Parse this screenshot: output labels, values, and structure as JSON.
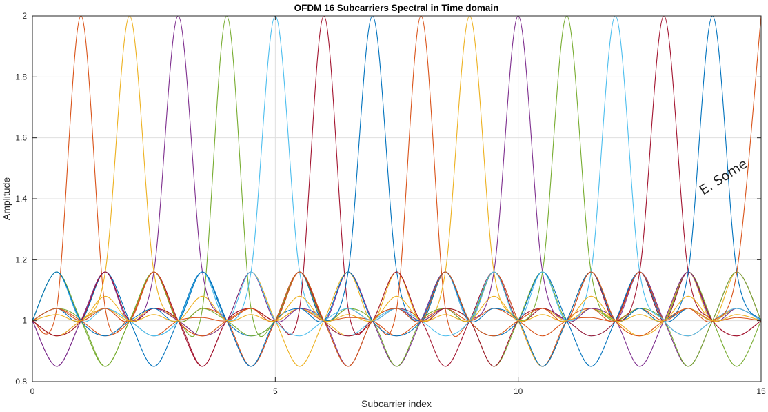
{
  "chart_data": {
    "type": "line",
    "title": "OFDM 16 Subcarriers Spectral in Time domain",
    "xlabel": "Subcarrier index",
    "ylabel": "Amplitude",
    "xlim": [
      0,
      15
    ],
    "ylim": [
      0.8,
      2
    ],
    "xticks": [
      0,
      5,
      10,
      15
    ],
    "yticks": [
      0.8,
      1,
      1.2,
      1.4,
      1.6,
      1.8,
      2
    ],
    "grid": true,
    "legend": "none",
    "annotation": "E. Some",
    "x_step": 0.5,
    "series": [
      {
        "color": "#D95319",
        "values": [
          1,
          1.04,
          2,
          1.04,
          1,
          0.95,
          1,
          1.01,
          1,
          1.04,
          1,
          1.04,
          1,
          1.01,
          1,
          0.95,
          1,
          1.04,
          1,
          1.04,
          1,
          0.95,
          1,
          1.01,
          1,
          1.04,
          1,
          1.04,
          1,
          1.01,
          1
        ]
      },
      {
        "color": "#EDB120",
        "values": [
          1,
          0.95,
          1,
          1.16,
          2,
          1.16,
          1,
          0.95,
          1,
          1.04,
          1,
          1.04,
          1,
          0.95,
          1,
          1.16,
          1,
          1.16,
          1,
          0.95,
          1,
          1.04,
          1,
          1.04,
          1,
          0.95,
          1,
          1.16,
          1,
          1.16,
          1
        ]
      },
      {
        "color": "#7E2F8E",
        "values": [
          1,
          0.85,
          1,
          1.16,
          1,
          1.16,
          2,
          1.16,
          1,
          0.85,
          1,
          1.16,
          1,
          1.16,
          1,
          0.85,
          1,
          1.16,
          1,
          1.16,
          1,
          0.85,
          1,
          1.16,
          1,
          1.16,
          1,
          0.85,
          1,
          1.16,
          1
        ]
      },
      {
        "color": "#77AC30",
        "values": [
          1,
          1.04,
          1,
          0.85,
          1,
          1.16,
          1,
          1.04,
          2,
          1.04,
          1,
          1.16,
          1,
          0.85,
          1,
          1.04,
          1,
          1.04,
          1,
          0.85,
          1,
          1.16,
          1,
          1.04,
          1,
          1.04,
          1,
          1.16,
          1,
          0.85,
          1
        ]
      },
      {
        "color": "#4DBEEE",
        "values": [
          1,
          1.16,
          1,
          1.04,
          1,
          0.95,
          1,
          1.16,
          1,
          1.16,
          2,
          1.16,
          1,
          0.95,
          1,
          1.04,
          1,
          1.16,
          1,
          1.16,
          1,
          1.04,
          1,
          0.95,
          1,
          1.16,
          1,
          1.16,
          1,
          1.04,
          1
        ]
      },
      {
        "color": "#A2142F",
        "values": [
          1,
          0.95,
          1,
          1.04,
          1,
          1.16,
          1,
          0.85,
          1,
          1.04,
          1,
          1.04,
          2,
          1.04,
          1,
          1.04,
          1,
          0.85,
          1,
          1.16,
          1,
          1.04,
          1,
          0.95,
          1,
          1.16,
          1,
          1.16,
          1,
          0.95,
          1
        ]
      },
      {
        "color": "#0072BD",
        "values": [
          1,
          1.04,
          1,
          1.16,
          1,
          0.85,
          1,
          1.16,
          1,
          0.95,
          1,
          1.16,
          1,
          1.16,
          2,
          1.16,
          1,
          1.16,
          1,
          0.95,
          1,
          1.16,
          1,
          0.85,
          1,
          1.16,
          1,
          1.04,
          1,
          1.04,
          1
        ]
      },
      {
        "color": "#D95319",
        "values": [
          1,
          1.04,
          1,
          0.95,
          1,
          1.16,
          1,
          1.04,
          1,
          0.85,
          1,
          1.16,
          1,
          1.04,
          1,
          1.04,
          2,
          1.04,
          1,
          1.16,
          1,
          0.85,
          1,
          1.04,
          1,
          1.16,
          1,
          0.95,
          1,
          1.04,
          1
        ]
      },
      {
        "color": "#EDB120",
        "values": [
          1,
          0.95,
          1,
          1.04,
          1,
          1.04,
          1,
          0.95,
          1,
          1.16,
          1,
          0.85,
          1,
          1.16,
          1,
          1.16,
          1,
          1.16,
          2,
          1.16,
          1,
          0.85,
          1,
          1.16,
          1,
          0.95,
          1,
          1.04,
          1,
          1.04,
          1
        ]
      },
      {
        "color": "#7E2F8E",
        "values": [
          1,
          0.85,
          1,
          1.16,
          1,
          1.04,
          1,
          0.95,
          1,
          1.16,
          1,
          1.04,
          1,
          0.85,
          1,
          1.04,
          1,
          1.04,
          1,
          1.16,
          2,
          1.16,
          1,
          1.04,
          1,
          0.85,
          1,
          1.16,
          1,
          1.04,
          1
        ]
      },
      {
        "color": "#77AC30",
        "values": [
          1,
          1.16,
          1,
          0.85,
          1,
          1.16,
          1,
          1.04,
          1,
          0.95,
          1,
          1.16,
          1,
          1.04,
          1,
          0.85,
          1,
          1.04,
          1,
          1.16,
          1,
          1.16,
          2,
          1.16,
          1,
          1.04,
          1,
          0.85,
          1,
          1.16,
          1
        ]
      },
      {
        "color": "#4DBEEE",
        "values": [
          1,
          1.04,
          1,
          1.04,
          1,
          0.95,
          1,
          1.16,
          1,
          1.16,
          1,
          0.95,
          1,
          1.04,
          1,
          1.04,
          1,
          0.95,
          1,
          1.16,
          1,
          1.16,
          1,
          1.16,
          2,
          1.16,
          1,
          0.95,
          1,
          1.04,
          1
        ]
      },
      {
        "color": "#A2142F",
        "values": [
          1,
          0.95,
          1,
          1.16,
          1,
          1.04,
          1,
          0.85,
          1,
          1.04,
          1,
          1.16,
          1,
          0.95,
          1,
          1.16,
          1,
          1.04,
          1,
          0.85,
          1,
          1.04,
          1,
          1.16,
          1,
          1.16,
          2,
          1.16,
          1,
          0.95,
          1
        ]
      },
      {
        "color": "#0072BD",
        "values": [
          1,
          1.16,
          1,
          0.95,
          1,
          1.04,
          1,
          1.16,
          1,
          0.85,
          1,
          1.04,
          1,
          1.16,
          1,
          0.95,
          1,
          1.16,
          1,
          1.04,
          1,
          0.85,
          1,
          1.16,
          1,
          1.04,
          1,
          1.16,
          2,
          1.16,
          1
        ]
      },
      {
        "color": "#D95319",
        "values": [
          1,
          1.04,
          1,
          1.04,
          1,
          1.16,
          1,
          0.95,
          1,
          1.04,
          1,
          1.16,
          1,
          0.85,
          1,
          1.04,
          1,
          1.16,
          1,
          0.95,
          1,
          1.04,
          1,
          1.16,
          1,
          0.95,
          1,
          1.04,
          1,
          1.16,
          2
        ]
      },
      {
        "color": "#EDB120",
        "values": [
          1,
          1.02,
          1,
          1.08,
          1,
          1.02,
          1,
          1.08,
          1,
          1.02,
          1,
          1.08,
          1,
          1.02,
          1,
          1.08,
          1,
          1.02,
          1,
          1.08,
          1,
          1.02,
          1,
          1.08,
          1,
          1.02,
          1,
          1.08,
          1,
          1.02,
          1
        ]
      }
    ]
  }
}
